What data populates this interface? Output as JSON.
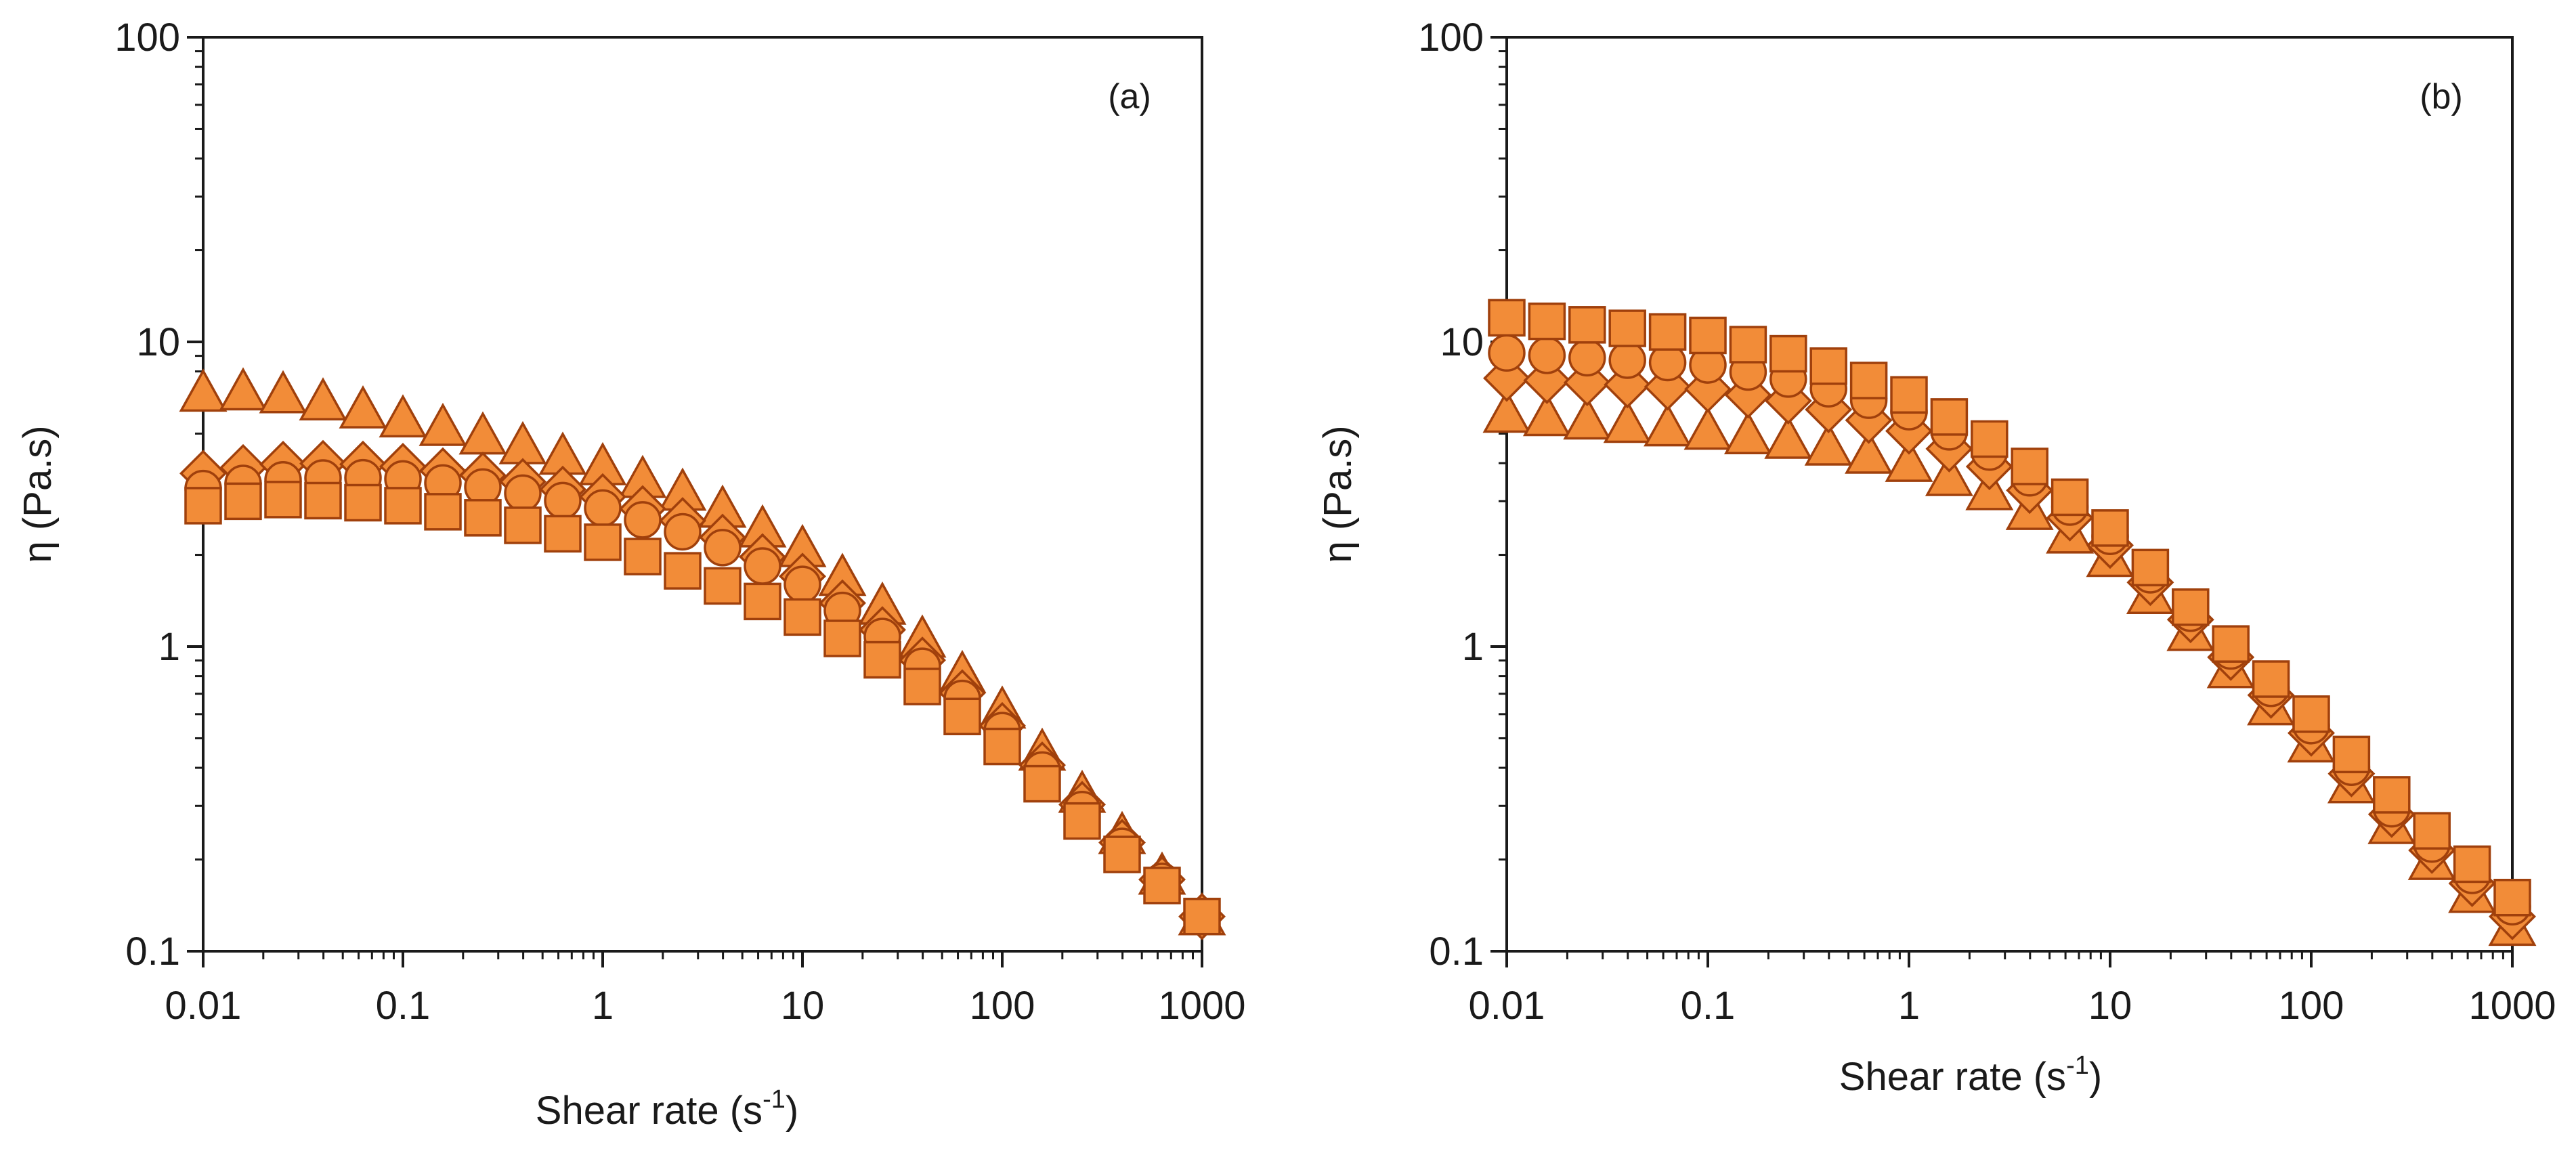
{
  "chart_data": [
    {
      "type": "scatter",
      "panel_label": "(a)",
      "xlabel_main": "Shear rate (s",
      "xlabel_sup": "-1",
      "xlabel_end": ")",
      "ylabel": "η (Pa.s)",
      "xscale": "log",
      "yscale": "log",
      "xlim": [
        0.01,
        1000
      ],
      "ylim": [
        0.1,
        100
      ],
      "xticks": [
        "0.01",
        "0.1",
        "1",
        "10",
        "100",
        "1000"
      ],
      "yticks": [
        "0.1",
        "1",
        "10",
        "100"
      ],
      "colors": {
        "marker_fill": "#F28C38",
        "marker_edge": "#A0400C",
        "axis": "#1a1a1a"
      },
      "series": [
        {
          "name": "triangle series",
          "marker": "triangle",
          "anchors": [
            [
              0.01,
              6.8
            ],
            [
              0.02,
              6.9
            ],
            [
              0.05,
              6.2
            ],
            [
              0.1,
              5.6
            ],
            [
              0.3,
              4.8
            ],
            [
              1,
              3.9
            ],
            [
              3,
              3.1
            ],
            [
              10,
              2.1
            ],
            [
              30,
              1.25
            ],
            [
              100,
              0.62
            ],
            [
              300,
              0.29
            ],
            [
              1000,
              0.13
            ]
          ]
        },
        {
          "name": "diamond series",
          "marker": "diamond",
          "anchors": [
            [
              0.01,
              3.7
            ],
            [
              0.02,
              3.95
            ],
            [
              0.05,
              4.0
            ],
            [
              0.1,
              3.9
            ],
            [
              0.3,
              3.6
            ],
            [
              1,
              3.1
            ],
            [
              3,
              2.5
            ],
            [
              10,
              1.7
            ],
            [
              30,
              1.05
            ],
            [
              100,
              0.55
            ],
            [
              300,
              0.27
            ],
            [
              1000,
              0.13
            ]
          ]
        },
        {
          "name": "circle series",
          "marker": "circle",
          "anchors": [
            [
              0.01,
              3.3
            ],
            [
              0.02,
              3.5
            ],
            [
              0.05,
              3.6
            ],
            [
              0.1,
              3.55
            ],
            [
              0.3,
              3.3
            ],
            [
              1,
              2.85
            ],
            [
              3,
              2.3
            ],
            [
              10,
              1.6
            ],
            [
              30,
              1.0
            ],
            [
              100,
              0.53
            ],
            [
              300,
              0.26
            ],
            [
              1000,
              0.13
            ]
          ]
        },
        {
          "name": "square series",
          "marker": "square",
          "anchors": [
            [
              0.01,
              2.9
            ],
            [
              0.02,
              3.05
            ],
            [
              0.05,
              3.0
            ],
            [
              0.1,
              2.9
            ],
            [
              0.3,
              2.6
            ],
            [
              1,
              2.2
            ],
            [
              3,
              1.7
            ],
            [
              10,
              1.25
            ],
            [
              30,
              0.85
            ],
            [
              100,
              0.47
            ],
            [
              300,
              0.24
            ],
            [
              1000,
              0.13
            ]
          ]
        }
      ]
    },
    {
      "type": "scatter",
      "panel_label": "(b)",
      "xlabel_main": "Shear rate (s",
      "xlabel_sup": "-1",
      "xlabel_end": ")",
      "ylabel": "η (Pa.s)",
      "xscale": "log",
      "yscale": "log",
      "xlim": [
        0.01,
        1000
      ],
      "ylim": [
        0.1,
        100
      ],
      "xticks": [
        "0.01",
        "0.1",
        "1",
        "10",
        "100",
        "1000"
      ],
      "yticks": [
        "0.1",
        "1",
        "10",
        "100"
      ],
      "colors": {
        "marker_fill": "#F28C38",
        "marker_edge": "#A0400C",
        "axis": "#1a1a1a"
      },
      "series": [
        {
          "name": "triangle series",
          "marker": "triangle",
          "anchors": [
            [
              0.01,
              5.8
            ],
            [
              0.1,
              5.1
            ],
            [
              0.3,
              4.7
            ],
            [
              1,
              4.0
            ],
            [
              3,
              3.1
            ],
            [
              10,
              1.95
            ],
            [
              30,
              1.0
            ],
            [
              100,
              0.48
            ],
            [
              300,
              0.23
            ],
            [
              1000,
              0.12
            ]
          ]
        },
        {
          "name": "diamond series",
          "marker": "diamond",
          "anchors": [
            [
              0.01,
              7.6
            ],
            [
              0.1,
              7.0
            ],
            [
              0.3,
              6.3
            ],
            [
              1,
              5.1
            ],
            [
              3,
              3.7
            ],
            [
              10,
              2.15
            ],
            [
              30,
              1.1
            ],
            [
              100,
              0.52
            ],
            [
              300,
              0.25
            ],
            [
              1000,
              0.13
            ]
          ]
        },
        {
          "name": "circle series",
          "marker": "circle",
          "anchors": [
            [
              0.01,
              9.2
            ],
            [
              0.1,
              8.4
            ],
            [
              0.3,
              7.4
            ],
            [
              1,
              5.9
            ],
            [
              3,
              4.1
            ],
            [
              10,
              2.3
            ],
            [
              30,
              1.15
            ],
            [
              100,
              0.55
            ],
            [
              300,
              0.26
            ],
            [
              1000,
              0.14
            ]
          ]
        },
        {
          "name": "square series",
          "marker": "square",
          "anchors": [
            [
              0.01,
              12.0
            ],
            [
              0.1,
              10.5
            ],
            [
              0.3,
              8.9
            ],
            [
              1,
              6.7
            ],
            [
              3,
              4.5
            ],
            [
              10,
              2.45
            ],
            [
              30,
              1.2
            ],
            [
              100,
              0.6
            ],
            [
              300,
              0.29
            ],
            [
              1000,
              0.15
            ]
          ]
        }
      ]
    }
  ]
}
